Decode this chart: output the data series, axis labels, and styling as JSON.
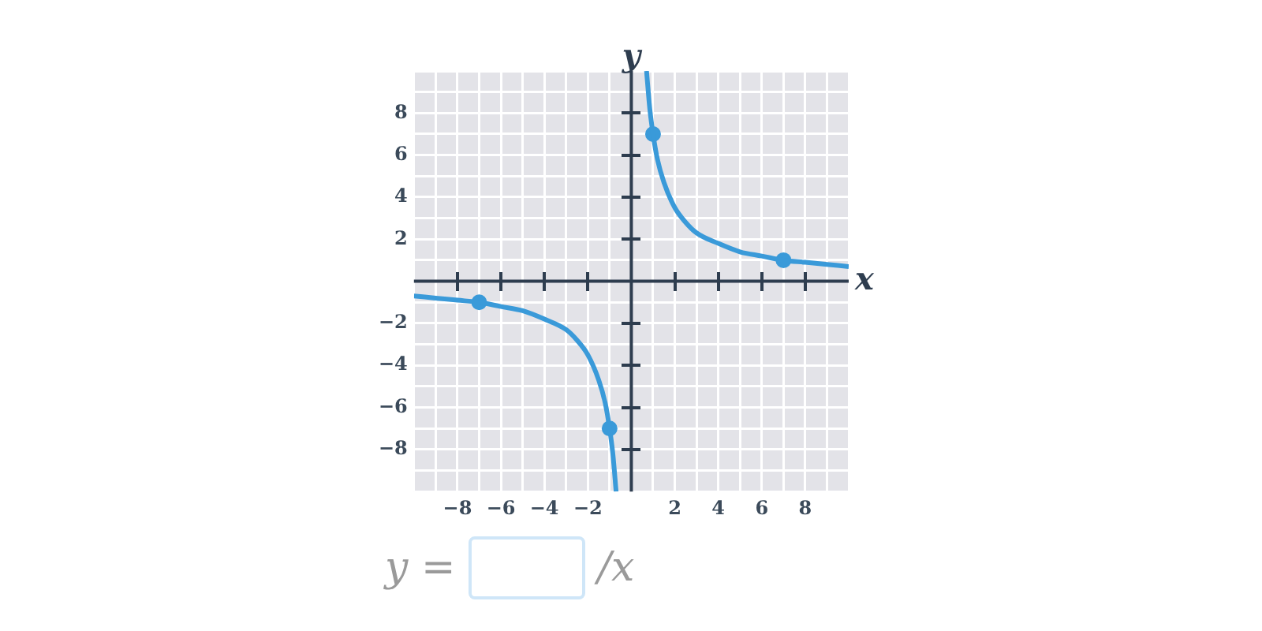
{
  "chart_data": {
    "type": "line",
    "xlabel": "x",
    "ylabel": "y",
    "xlim": [
      -10,
      10
    ],
    "ylim": [
      -10,
      10
    ],
    "xticks": [
      {
        "value": -10,
        "label": null
      },
      {
        "value": -9,
        "label": null
      },
      -8,
      {
        "value": -7,
        "label": null
      },
      -6,
      {
        "value": -5,
        "label": null
      },
      -4,
      {
        "value": -3,
        "label": null
      },
      -2,
      {
        "value": -1,
        "label": null
      },
      {
        "value": 0,
        "label": null
      },
      {
        "value": 1,
        "label": null
      },
      2,
      {
        "value": 3,
        "label": null
      },
      4,
      {
        "value": 5,
        "label": null
      },
      6,
      {
        "value": 7,
        "label": null
      },
      8,
      {
        "value": 9,
        "label": null
      },
      {
        "value": 10,
        "label": null
      }
    ],
    "yticks": [
      {
        "value": -10,
        "label": null
      },
      {
        "value": -9,
        "label": null
      },
      -8,
      {
        "value": -7,
        "label": null
      },
      -6,
      {
        "value": -5,
        "label": null
      },
      -4,
      {
        "value": -3,
        "label": null
      },
      -2,
      {
        "value": -1,
        "label": null
      },
      {
        "value": 0,
        "label": null
      },
      {
        "value": 1,
        "label": null
      },
      2,
      {
        "value": 3,
        "label": null
      },
      4,
      {
        "value": 5,
        "label": null
      },
      6,
      {
        "value": 7,
        "label": null
      },
      8,
      {
        "value": 9,
        "label": null
      },
      {
        "value": 10,
        "label": null
      }
    ],
    "grid": true,
    "legend": false,
    "series": [
      {
        "type": "line",
        "color": "#3a9ad9",
        "marker": "none",
        "x": [
          -10,
          -9,
          -8,
          -7,
          -6,
          -5,
          -4,
          -3,
          -2.5,
          -2,
          -1.5,
          -1.2,
          -1,
          -0.85,
          -0.7,
          0,
          0.7,
          0.85,
          1,
          1.2,
          1.5,
          2,
          2.5,
          3,
          4,
          5,
          6,
          7,
          8,
          9,
          10
        ],
        "values": [
          -0.7,
          -0.8,
          -0.9,
          -1,
          -1.2,
          -1.4,
          -1.8,
          -2.3,
          -2.8,
          -3.5,
          -4.7,
          -5.8,
          -7,
          -8.2,
          -10,
          null,
          10,
          8.2,
          7,
          5.8,
          4.7,
          3.5,
          2.8,
          2.3,
          1.8,
          1.4,
          1.2,
          1,
          0.9,
          0.8,
          0.7
        ]
      },
      {
        "type": "scatter",
        "color": "#3a9ad9",
        "marker": "circle",
        "x": [
          -7,
          -1,
          1,
          7
        ],
        "values": [
          -1,
          -7,
          7,
          1
        ]
      }
    ],
    "annotations": [
      "y =",
      "/x"
    ]
  }
}
